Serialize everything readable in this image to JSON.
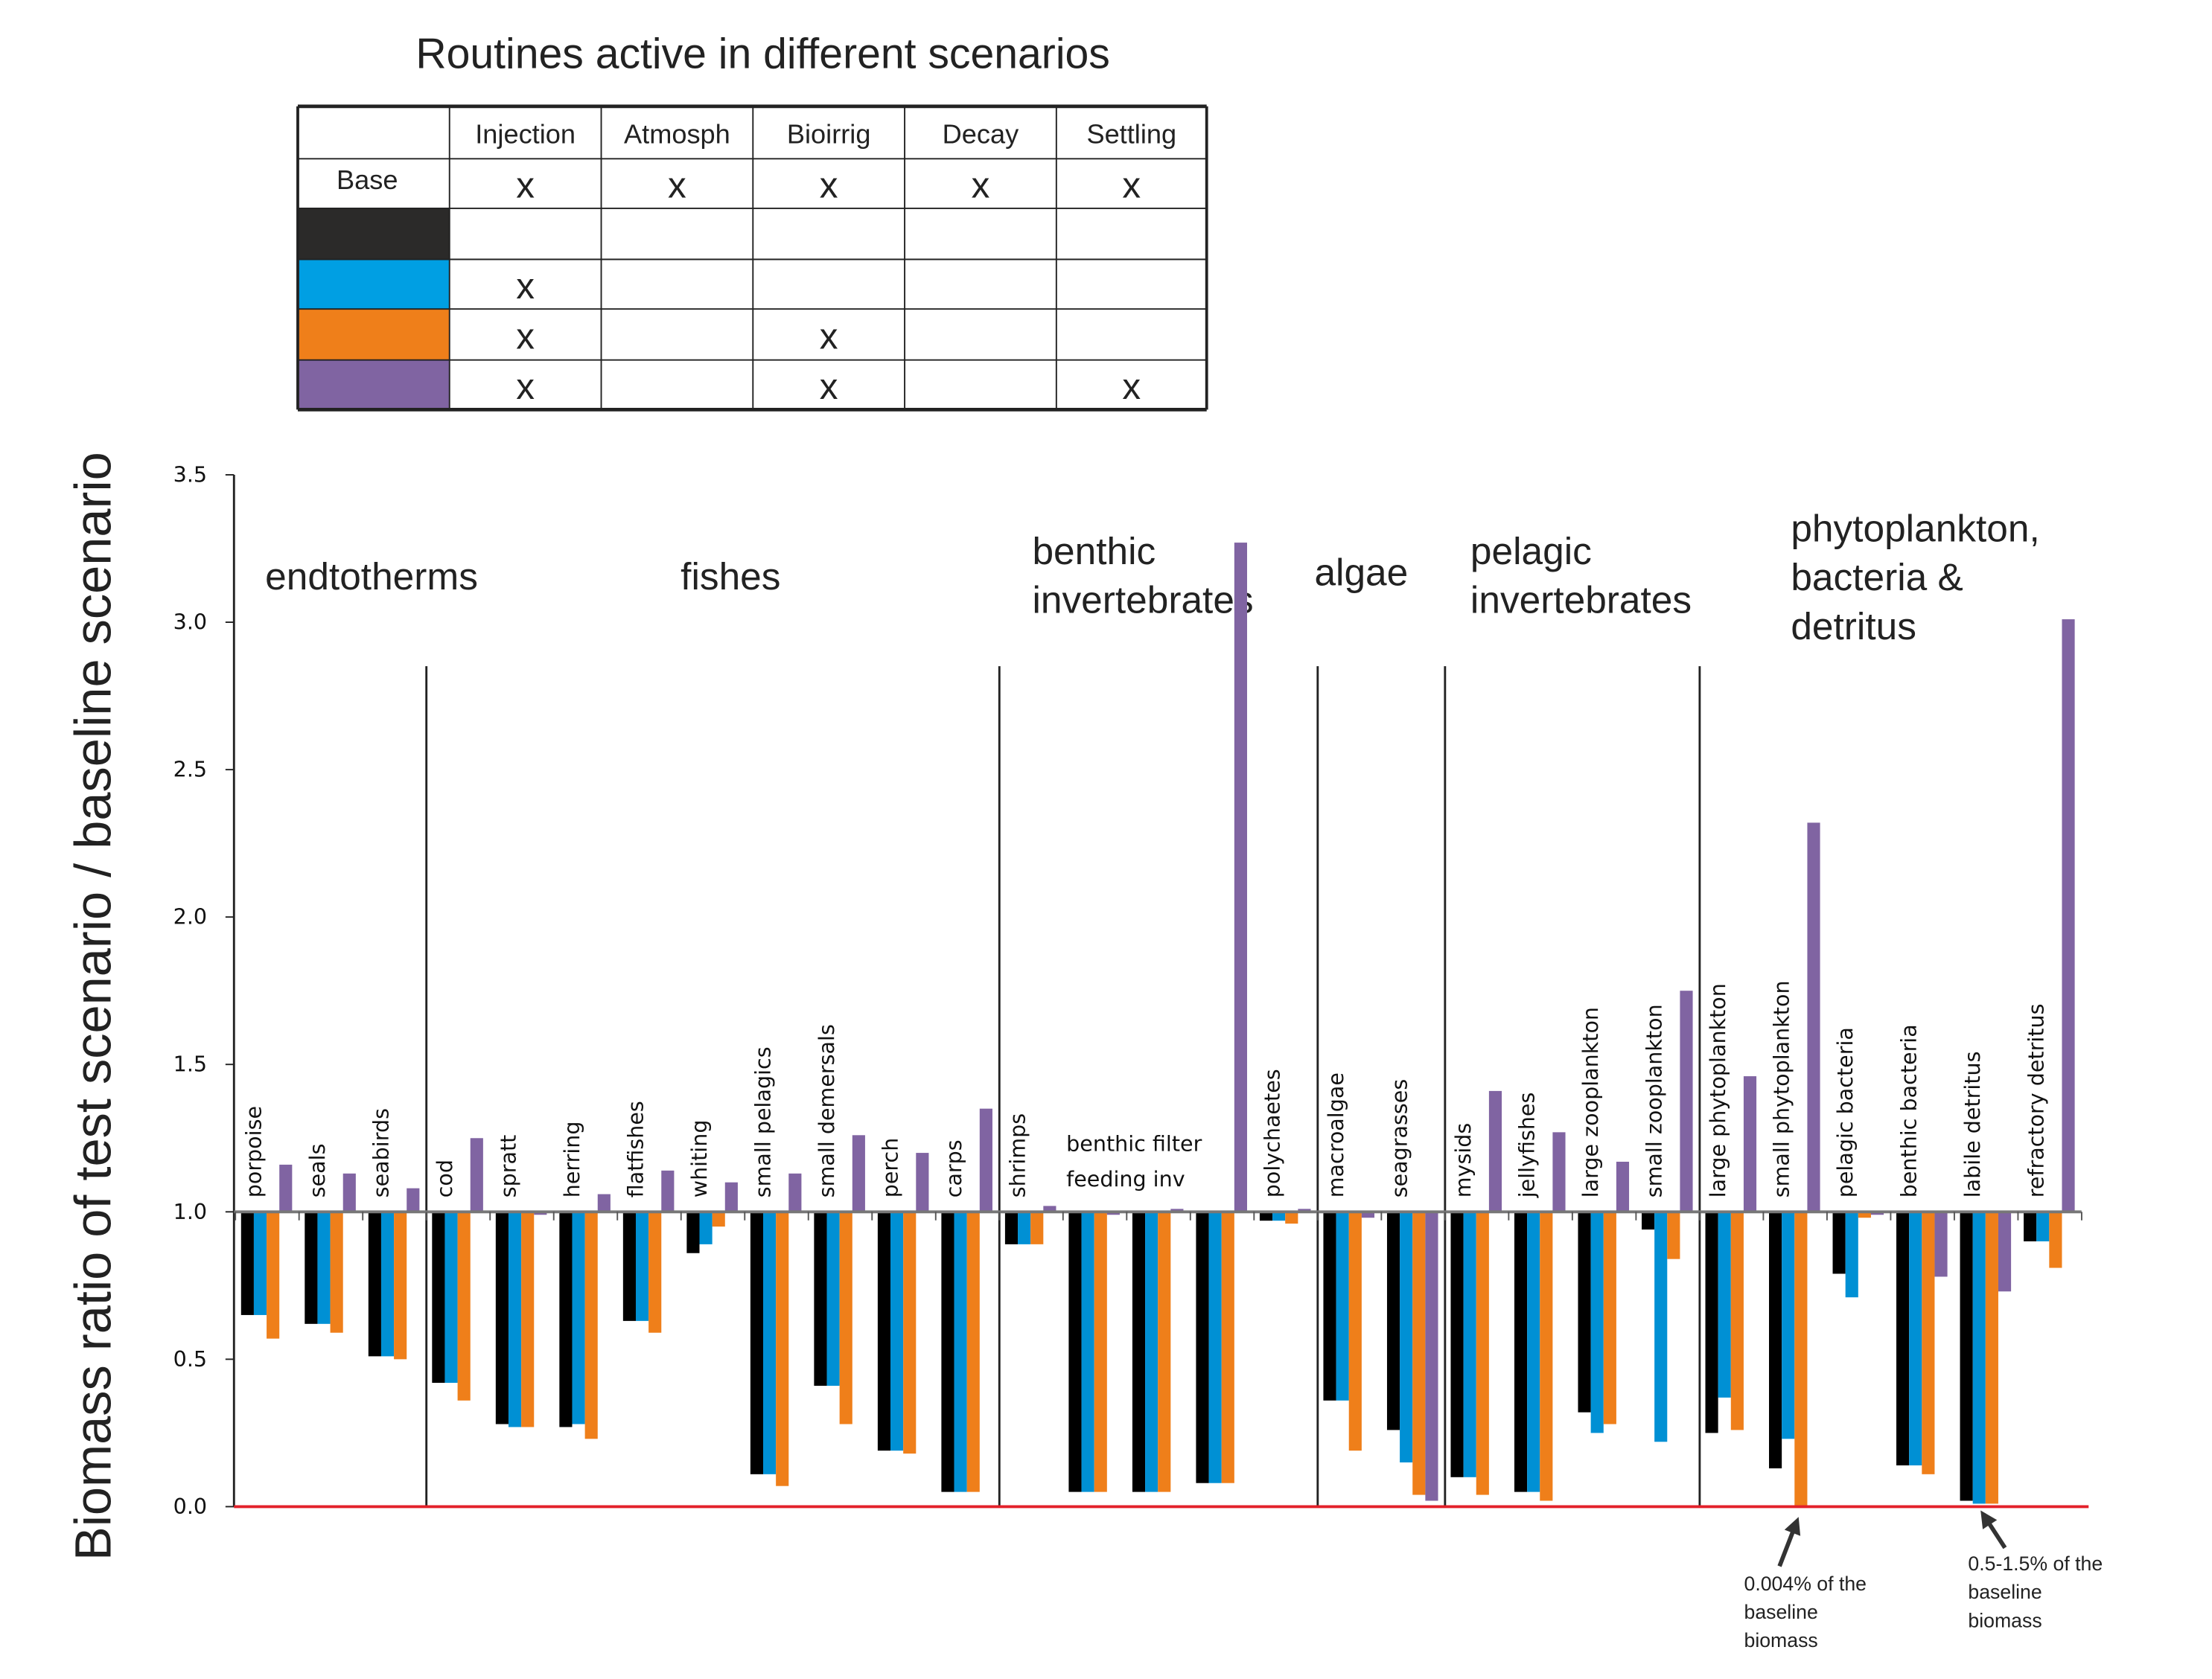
{
  "table": {
    "title": "Routines active in different scenarios",
    "columns": [
      "Injection",
      "Atmosph",
      "Bioirrig",
      "Decay",
      "Settling"
    ],
    "rows": [
      {
        "label": "Base",
        "swatch": null,
        "marks": [
          "x",
          "x",
          "x",
          "x",
          "x"
        ]
      },
      {
        "label": "",
        "swatch": "#2b2a29",
        "marks": [
          "",
          "",
          "",
          "",
          ""
        ]
      },
      {
        "label": "",
        "swatch": "#009fe3",
        "marks": [
          "x",
          "",
          "",
          "",
          ""
        ]
      },
      {
        "label": "",
        "swatch": "#ef7f1a",
        "marks": [
          "x",
          "",
          "x",
          "",
          ""
        ]
      },
      {
        "label": "",
        "swatch": "#8064a2",
        "marks": [
          "x",
          "",
          "x",
          "",
          "x"
        ]
      }
    ]
  },
  "chart_data": {
    "type": "bar",
    "ylabel": "Biomass ratio of test scenario / baseline scenario",
    "ylim": [
      0,
      3.5
    ],
    "yticks": [
      "0.0",
      "0.5",
      "1.0",
      "1.5",
      "2.0",
      "2.5",
      "3.0",
      "3.5"
    ],
    "baseline": 1.0,
    "colors": [
      "#000000",
      "#0090d4",
      "#ef7f1a",
      "#8064a2"
    ],
    "sections": [
      {
        "label": [
          "endtotherms"
        ],
        "start": 0
      },
      {
        "label": [
          "fishes"
        ],
        "start": 3
      },
      {
        "label": [
          "benthic",
          "invertebrates"
        ],
        "start": 12
      },
      {
        "label": [
          "algae"
        ],
        "start": 17
      },
      {
        "label": [
          "pelagic",
          "invertebrates"
        ],
        "start": 19
      },
      {
        "label": [
          "phytoplankton,",
          "bacteria &",
          "detritus"
        ],
        "start": 23
      }
    ],
    "categories": [
      "porpoise",
      "seals",
      "seabirds",
      "cod",
      "spratt",
      "herring",
      "flatfishes",
      "whiting",
      "small pelagics",
      "small demersals",
      "perch",
      "carps",
      "shrimps",
      "",
      "",
      "",
      "polychaetes",
      "macroalgae",
      "seagrasses",
      "mysids",
      "jellyfishes",
      "large zooplankton",
      "small zooplankton",
      "large phytoplankton",
      "small phytoplankton",
      "pelagic bacteria",
      "benthic bacteria",
      "labile detritus",
      "refractory detritus"
    ],
    "group_label": "benthic filter feeding inv",
    "series": [
      {
        "values": [
          0.65,
          0.62,
          0.51,
          0.42,
          0.28,
          0.27,
          0.63,
          0.86,
          0.11,
          0.41,
          0.19,
          0.05,
          0.89,
          0.05,
          0.05,
          0.08,
          0.97,
          0.36,
          0.26,
          0.1,
          0.05,
          0.32,
          0.94,
          0.25,
          0.13,
          0.79,
          0.14,
          0.02,
          0.9
        ]
      },
      {
        "values": [
          0.65,
          0.62,
          0.51,
          0.42,
          0.27,
          0.28,
          0.63,
          0.89,
          0.11,
          0.41,
          0.19,
          0.05,
          0.89,
          0.05,
          0.05,
          0.08,
          0.97,
          0.36,
          0.15,
          0.1,
          0.05,
          0.25,
          0.22,
          0.37,
          0.23,
          0.71,
          0.14,
          0.01,
          0.9
        ]
      },
      {
        "values": [
          0.57,
          0.59,
          0.5,
          0.36,
          0.27,
          0.23,
          0.59,
          0.95,
          0.07,
          0.28,
          0.18,
          0.05,
          0.89,
          0.05,
          0.05,
          0.08,
          0.96,
          0.19,
          0.04,
          0.04,
          0.02,
          0.28,
          0.84,
          0.26,
          4e-05,
          0.98,
          0.11,
          0.01,
          0.81
        ]
      },
      {
        "values": [
          1.16,
          1.13,
          1.08,
          1.25,
          0.99,
          1.06,
          1.14,
          1.1,
          1.13,
          1.26,
          1.2,
          1.35,
          1.02,
          0.99,
          1.01,
          3.27,
          1.01,
          0.98,
          0.02,
          1.41,
          1.27,
          1.17,
          1.75,
          1.46,
          2.32,
          0.99,
          0.78,
          0.73,
          3.01
        ]
      }
    ],
    "annotations": [
      {
        "text": [
          "0.004% of the",
          "baseline",
          "biomass"
        ],
        "category": "small phytoplankton"
      },
      {
        "text": [
          "0.5-1.5% of the",
          "baseline",
          "biomass"
        ],
        "category": "labile detritus"
      }
    ]
  }
}
